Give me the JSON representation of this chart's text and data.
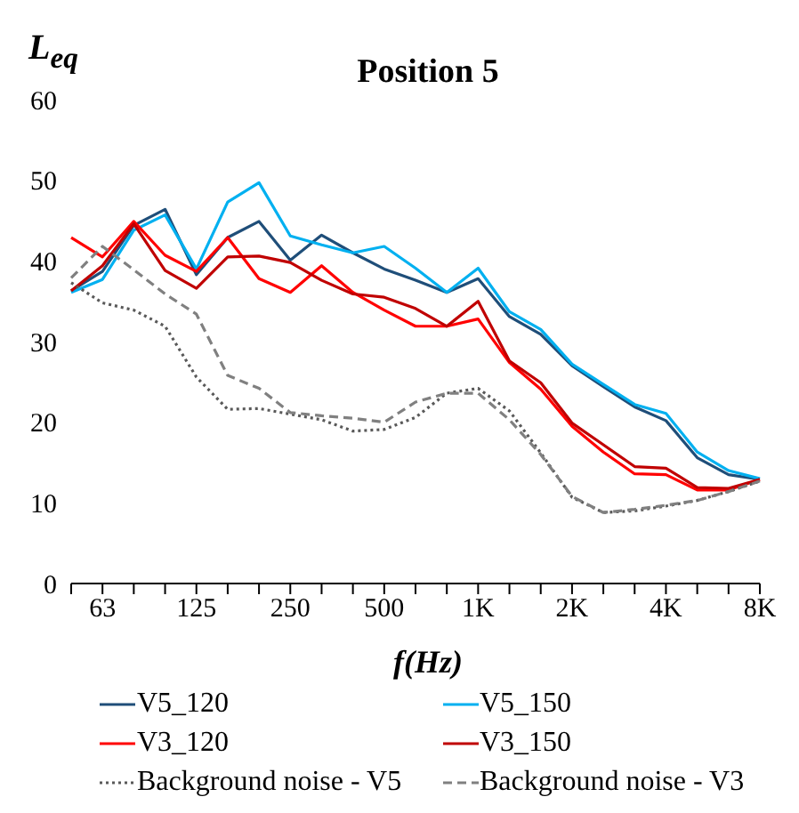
{
  "chart_data": {
    "type": "line",
    "title": "Position 5",
    "xlabel": "f(Hz)",
    "ylabel": "L$_{eq}$",
    "categories": [
      null,
      "63",
      null,
      null,
      "125",
      null,
      null,
      "250",
      null,
      null,
      "500",
      null,
      null,
      "1K",
      null,
      null,
      "2K",
      null,
      null,
      "4K",
      null,
      null,
      "8K"
    ],
    "series": [
      {
        "name": "V5_120",
        "color": "#1f4e79",
        "line_style": "solid",
        "values": [
          36.3,
          38.7,
          44.4,
          46.4,
          38.3,
          42.9,
          44.9,
          40.1,
          43.2,
          41.0,
          39.0,
          37.6,
          36.1,
          37.8,
          33.1,
          30.9,
          27.0,
          24.4,
          21.9,
          20.2,
          15.6,
          13.5,
          12.9
        ]
      },
      {
        "name": "V5_150",
        "color": "#00b0f0",
        "line_style": "solid",
        "values": [
          36.1,
          37.7,
          43.8,
          45.7,
          39.0,
          47.3,
          49.7,
          43.1,
          42.0,
          41.0,
          41.8,
          39.1,
          36.1,
          39.1,
          33.7,
          31.5,
          27.2,
          24.7,
          22.2,
          21.1,
          16.3,
          14.0,
          13.0
        ]
      },
      {
        "name": "V3_120",
        "color": "#ff0000",
        "line_style": "solid",
        "values": [
          42.9,
          40.5,
          44.9,
          40.7,
          38.7,
          42.9,
          37.8,
          36.1,
          39.4,
          36.1,
          33.9,
          31.9,
          31.9,
          32.8,
          27.4,
          24.1,
          19.5,
          16.3,
          13.6,
          13.5,
          11.6,
          11.6,
          12.9
        ]
      },
      {
        "name": "V3_150",
        "color": "#c00000",
        "line_style": "solid",
        "values": [
          36.3,
          39.4,
          44.6,
          38.8,
          36.6,
          40.5,
          40.6,
          39.8,
          37.6,
          35.9,
          35.5,
          34.1,
          31.9,
          35.0,
          27.6,
          24.9,
          19.9,
          17.2,
          14.5,
          14.3,
          11.9,
          11.8,
          12.9
        ]
      },
      {
        "name": "Background noise - V5",
        "color": "#595959",
        "line_style": "dotted",
        "values": [
          37.3,
          34.8,
          33.9,
          31.9,
          25.6,
          21.6,
          21.7,
          21.0,
          20.3,
          18.9,
          19.1,
          20.6,
          23.6,
          24.2,
          21.4,
          16.2,
          10.7,
          8.8,
          9.0,
          9.6,
          10.3,
          11.4,
          12.7
        ]
      },
      {
        "name": "Background noise - V3",
        "color": "#808080",
        "line_style": "dashed",
        "values": [
          37.9,
          41.8,
          38.9,
          35.9,
          33.4,
          25.8,
          24.2,
          21.2,
          20.8,
          20.5,
          20.0,
          22.5,
          23.6,
          23.6,
          20.3,
          16.0,
          10.8,
          8.8,
          9.2,
          9.7,
          10.3,
          11.4,
          12.7
        ]
      }
    ],
    "ylim": [
      0,
      60
    ],
    "yticks": [
      0,
      10,
      20,
      30,
      40,
      50,
      60
    ],
    "grid": false,
    "legend": "bottom",
    "marker": "none"
  }
}
